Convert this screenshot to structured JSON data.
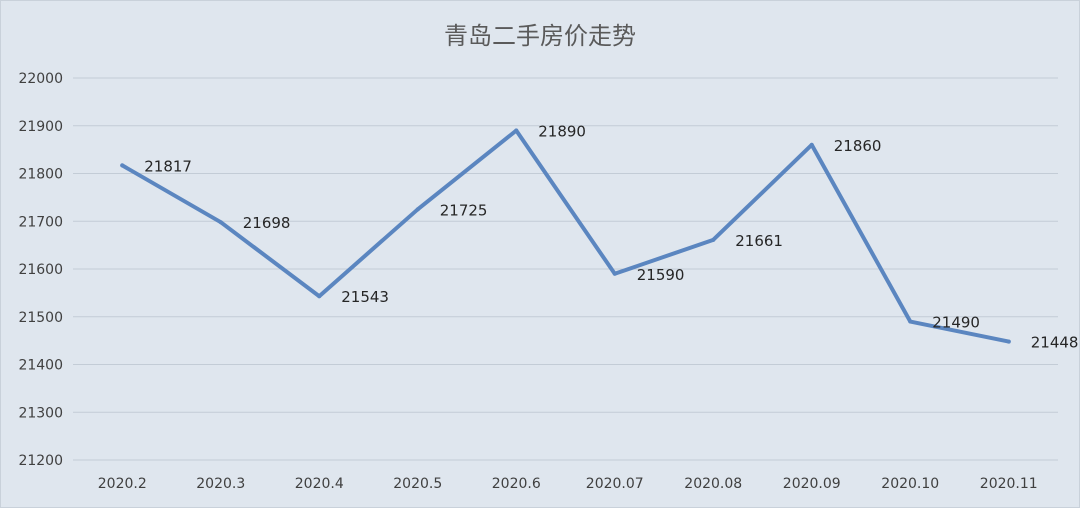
{
  "chart_data": {
    "type": "line",
    "title": "青岛二手房价走势",
    "xlabel": "",
    "ylabel": "",
    "categories": [
      "2020.2",
      "2020.3",
      "2020.4",
      "2020.5",
      "2020.6",
      "2020.07",
      "2020.08",
      "2020.09",
      "2020.10",
      "2020.11"
    ],
    "series": [
      {
        "values": [
          21817,
          21698,
          21543,
          21725,
          21890,
          21590,
          21661,
          21860,
          21490,
          21448
        ]
      }
    ],
    "ylim": [
      21200,
      22000
    ],
    "yticks": [
      "21200",
      "21300",
      "21400",
      "21500",
      "21600",
      "21700",
      "21800",
      "21900",
      "22000"
    ],
    "grid": true,
    "data_labels": true,
    "line_color": "#5b86c0",
    "background_color": "#dfe6ee"
  }
}
